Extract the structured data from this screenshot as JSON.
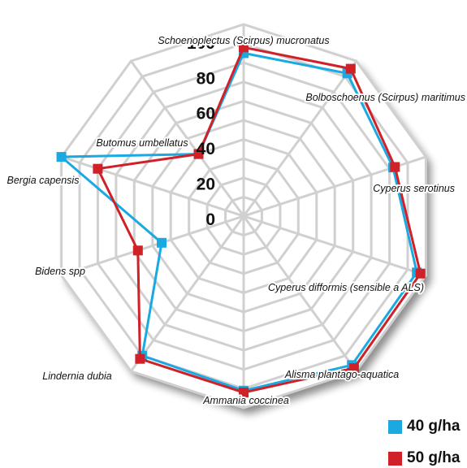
{
  "chart_data": {
    "type": "radar",
    "title": "",
    "categories": [
      "Schoenoplectus (Scirpus) mucronatus",
      "Bolboschoenus (Scirpus) maritimus",
      "Cyperus serotinus",
      "Cyperus difformis (sensible a ALS)",
      "Alisma plantago-aquatica",
      "Ammania coccinea",
      "Lindernia dubia",
      "Bidens spp",
      "Bergia capensis",
      "Butomus umbellatus"
    ],
    "radial_ticks": [
      "0",
      "20",
      "40",
      "60",
      "80",
      "100"
    ],
    "rmax": 100,
    "series": [
      {
        "name": "40 g/ha",
        "color": "#1aa9e1",
        "values": [
          85,
          92,
          82,
          95,
          96,
          91,
          90,
          45,
          100,
          40
        ]
      },
      {
        "name": "50 g/ha",
        "color": "#d02028",
        "values": [
          88,
          95,
          83,
          97,
          98,
          92,
          92,
          58,
          80,
          40
        ]
      }
    ],
    "legend_position": "bottom-right",
    "grid": true
  }
}
